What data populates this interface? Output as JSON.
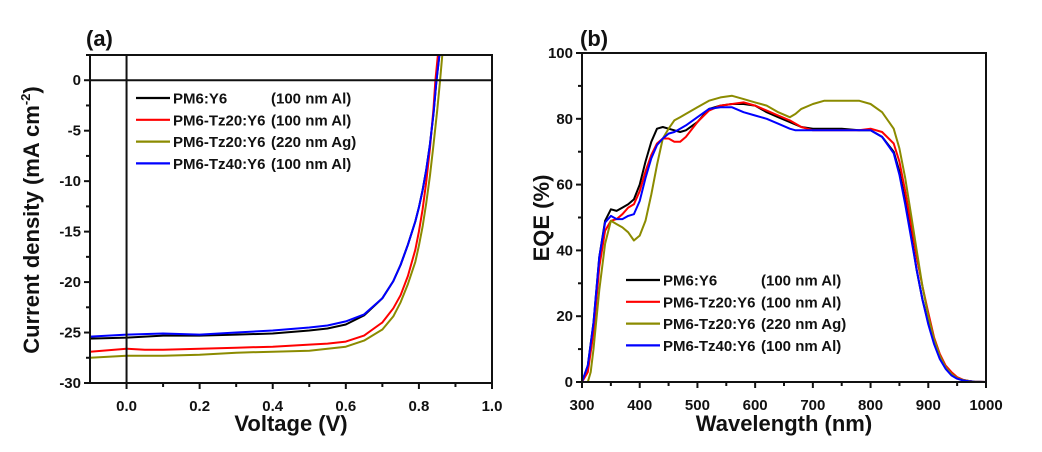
{
  "chart_data": [
    {
      "panel_label": "(a)",
      "type": "line",
      "title": "",
      "xlabel": "Voltage (V)",
      "ylabel": "Current density (mA cm",
      "ylabel_sup": "-2",
      "ylabel_end": ")",
      "xlim": [
        -0.1,
        1.0
      ],
      "ylim": [
        -30,
        2.5
      ],
      "xticks": [
        0.0,
        0.2,
        0.4,
        0.6,
        0.8,
        1.0
      ],
      "xtick_labels": [
        "0.0",
        "0.2",
        "0.4",
        "0.6",
        "0.8",
        "1.0"
      ],
      "yticks": [
        0,
        -5,
        -10,
        -15,
        -20,
        -25,
        -30
      ],
      "ytick_labels": [
        "0",
        "-5",
        "-10",
        "-15",
        "-20",
        "-25",
        "-30"
      ],
      "reference_lines": {
        "y": 0,
        "x": 0.0
      },
      "grid": false,
      "legend_position": "top-left",
      "series": [
        {
          "name": "PM6:Y6",
          "note": "(100 nm Al)",
          "color": "#000000",
          "x": [
            -0.1,
            0.0,
            0.1,
            0.2,
            0.3,
            0.4,
            0.5,
            0.55,
            0.6,
            0.65,
            0.7,
            0.73,
            0.75,
            0.77,
            0.79,
            0.8,
            0.81,
            0.82,
            0.83,
            0.84,
            0.848,
            0.856
          ],
          "y": [
            -25.6,
            -25.5,
            -25.3,
            -25.3,
            -25.2,
            -25.1,
            -24.8,
            -24.6,
            -24.2,
            -23.3,
            -21.6,
            -19.9,
            -18.3,
            -16.3,
            -14.0,
            -12.6,
            -10.9,
            -8.9,
            -6.4,
            -3.3,
            0.0,
            2.5
          ]
        },
        {
          "name": "PM6-Tz20:Y6",
          "note": "(100 nm Al)",
          "color": "#ff0000",
          "x": [
            -0.1,
            0.0,
            0.05,
            0.1,
            0.2,
            0.3,
            0.4,
            0.5,
            0.55,
            0.6,
            0.65,
            0.7,
            0.73,
            0.75,
            0.77,
            0.79,
            0.8,
            0.81,
            0.82,
            0.83,
            0.84,
            0.845,
            0.852
          ],
          "y": [
            -26.9,
            -26.6,
            -26.7,
            -26.7,
            -26.6,
            -26.5,
            -26.4,
            -26.2,
            -26.1,
            -25.9,
            -25.3,
            -24.0,
            -22.6,
            -21.3,
            -19.4,
            -16.8,
            -15.0,
            -12.8,
            -10.1,
            -6.8,
            -2.8,
            0.0,
            2.5
          ]
        },
        {
          "name": "PM6-Tz20:Y6",
          "note": "(220 nm Ag)",
          "color": "#8b8b00",
          "x": [
            -0.1,
            0.0,
            0.1,
            0.2,
            0.3,
            0.4,
            0.5,
            0.55,
            0.6,
            0.65,
            0.7,
            0.73,
            0.75,
            0.77,
            0.79,
            0.8,
            0.81,
            0.82,
            0.83,
            0.84,
            0.85,
            0.858,
            0.864
          ],
          "y": [
            -27.5,
            -27.3,
            -27.3,
            -27.2,
            -27.0,
            -26.9,
            -26.8,
            -26.6,
            -26.4,
            -25.8,
            -24.7,
            -23.4,
            -22.0,
            -20.2,
            -18.0,
            -16.4,
            -14.5,
            -12.2,
            -9.5,
            -6.4,
            -3.0,
            0.0,
            2.5
          ]
        },
        {
          "name": "PM6-Tz40:Y6",
          "note": "(100 nm Al)",
          "color": "#0000ff",
          "x": [
            -0.1,
            0.0,
            0.1,
            0.2,
            0.3,
            0.4,
            0.5,
            0.55,
            0.6,
            0.65,
            0.7,
            0.73,
            0.75,
            0.77,
            0.79,
            0.8,
            0.81,
            0.82,
            0.83,
            0.84,
            0.848,
            0.856
          ],
          "y": [
            -25.4,
            -25.2,
            -25.1,
            -25.2,
            -25.0,
            -24.8,
            -24.5,
            -24.3,
            -23.9,
            -23.2,
            -21.6,
            -19.9,
            -18.3,
            -16.3,
            -14.0,
            -12.6,
            -10.9,
            -8.9,
            -6.4,
            -3.3,
            0.0,
            2.5
          ]
        }
      ]
    },
    {
      "panel_label": "(b)",
      "type": "line",
      "title": "",
      "xlabel": "Wavelength (nm)",
      "ylabel": "EQE (%)",
      "xlim": [
        300,
        1000
      ],
      "ylim": [
        0,
        100
      ],
      "xticks": [
        300,
        400,
        500,
        600,
        700,
        800,
        900,
        1000
      ],
      "xtick_labels": [
        "300",
        "400",
        "500",
        "600",
        "700",
        "800",
        "900",
        "1000"
      ],
      "yticks": [
        0,
        20,
        40,
        60,
        80,
        100
      ],
      "ytick_labels": [
        "0",
        "20",
        "40",
        "60",
        "80",
        "100"
      ],
      "grid": false,
      "legend_position": "bottom-left",
      "series": [
        {
          "name": "PM6:Y6",
          "note": "(100 nm Al)",
          "color": "#000000",
          "x": [
            300,
            310,
            320,
            330,
            340,
            350,
            360,
            370,
            380,
            390,
            400,
            410,
            420,
            430,
            440,
            450,
            460,
            470,
            480,
            500,
            520,
            540,
            560,
            580,
            600,
            620,
            640,
            660,
            680,
            700,
            720,
            750,
            780,
            800,
            820,
            840,
            850,
            860,
            870,
            880,
            890,
            900,
            910,
            920,
            930,
            940,
            950,
            960,
            970,
            980,
            1000
          ],
          "y": [
            0,
            5,
            18,
            38,
            49,
            52.5,
            52,
            53,
            54,
            55.5,
            60,
            67,
            73,
            77,
            77.5,
            77,
            76.5,
            76,
            76.5,
            79,
            83,
            84,
            84.5,
            84.5,
            84,
            82,
            80.5,
            79,
            77.5,
            77,
            77,
            77,
            76.5,
            76.5,
            74.5,
            70,
            64,
            55,
            45,
            34,
            25,
            18,
            12,
            7.5,
            4.5,
            2.5,
            1.2,
            0.6,
            0.3,
            0.1,
            0
          ]
        },
        {
          "name": "PM6-Tz20:Y6",
          "note": "(100 nm Al)",
          "color": "#ff0000",
          "x": [
            300,
            310,
            320,
            330,
            340,
            350,
            360,
            370,
            380,
            390,
            400,
            410,
            420,
            430,
            440,
            450,
            460,
            470,
            480,
            500,
            520,
            540,
            560,
            580,
            600,
            620,
            640,
            660,
            680,
            700,
            720,
            750,
            780,
            800,
            820,
            840,
            850,
            860,
            870,
            880,
            890,
            900,
            910,
            920,
            930,
            940,
            950,
            960,
            970,
            980,
            1000
          ],
          "y": [
            0,
            3,
            15,
            35,
            46,
            49,
            49.5,
            51,
            53,
            54,
            58,
            64,
            69,
            72.5,
            74,
            74,
            73,
            73,
            74.5,
            79,
            82.5,
            84,
            84.5,
            85,
            84,
            82.5,
            81,
            79.5,
            77.5,
            76.5,
            76.5,
            76.5,
            76.5,
            77,
            76,
            72.5,
            67,
            58,
            48,
            38,
            29,
            21,
            13.5,
            8.5,
            5,
            3,
            1.5,
            0.7,
            0.3,
            0.1,
            0
          ]
        },
        {
          "name": "PM6-Tz20:Y6",
          "note": "(220 nm Ag)",
          "color": "#8b8b00",
          "x": [
            300,
            310,
            315,
            320,
            330,
            340,
            350,
            360,
            370,
            380,
            390,
            400,
            410,
            420,
            430,
            440,
            450,
            460,
            470,
            480,
            500,
            520,
            540,
            560,
            580,
            600,
            620,
            640,
            660,
            670,
            680,
            700,
            720,
            750,
            780,
            800,
            820,
            840,
            850,
            860,
            870,
            880,
            890,
            900,
            910,
            920,
            930,
            940,
            950,
            960,
            970,
            980,
            1000
          ],
          "y": [
            0,
            0,
            3,
            10,
            28,
            42,
            49,
            48,
            47,
            45.5,
            43,
            44.5,
            49,
            57,
            66,
            74,
            77,
            79.5,
            80.5,
            81.5,
            83.5,
            85.5,
            86.5,
            87,
            86,
            85,
            84,
            82,
            80.5,
            81.5,
            83,
            84.5,
            85.5,
            85.5,
            85.5,
            84.5,
            82,
            77,
            71,
            62,
            51,
            40,
            29,
            20,
            13,
            8,
            4.5,
            2.5,
            1.2,
            0.6,
            0.3,
            0.1,
            0
          ]
        },
        {
          "name": "PM6-Tz40:Y6",
          "note": "(100 nm Al)",
          "color": "#0000ff",
          "x": [
            300,
            310,
            320,
            330,
            340,
            350,
            360,
            370,
            380,
            390,
            400,
            410,
            420,
            430,
            440,
            450,
            460,
            470,
            480,
            500,
            520,
            540,
            560,
            580,
            600,
            620,
            640,
            660,
            670,
            680,
            700,
            720,
            750,
            780,
            800,
            820,
            840,
            850,
            860,
            870,
            880,
            890,
            900,
            910,
            920,
            930,
            940,
            950,
            960,
            970,
            980,
            1000
          ],
          "y": [
            0,
            5,
            18,
            38,
            48.5,
            50.5,
            49.5,
            49.5,
            50.5,
            51,
            55,
            62,
            68,
            72,
            74,
            75.5,
            76,
            77,
            78,
            80.5,
            83,
            83.5,
            83.5,
            82,
            81,
            80,
            78.5,
            77,
            76.5,
            76.5,
            76.5,
            76.5,
            76.5,
            76.5,
            76.5,
            74.5,
            69.5,
            63,
            54,
            44,
            34,
            25,
            17.5,
            11.5,
            7,
            4,
            2,
            1,
            0.5,
            0.2,
            0.1,
            0
          ]
        }
      ]
    }
  ]
}
